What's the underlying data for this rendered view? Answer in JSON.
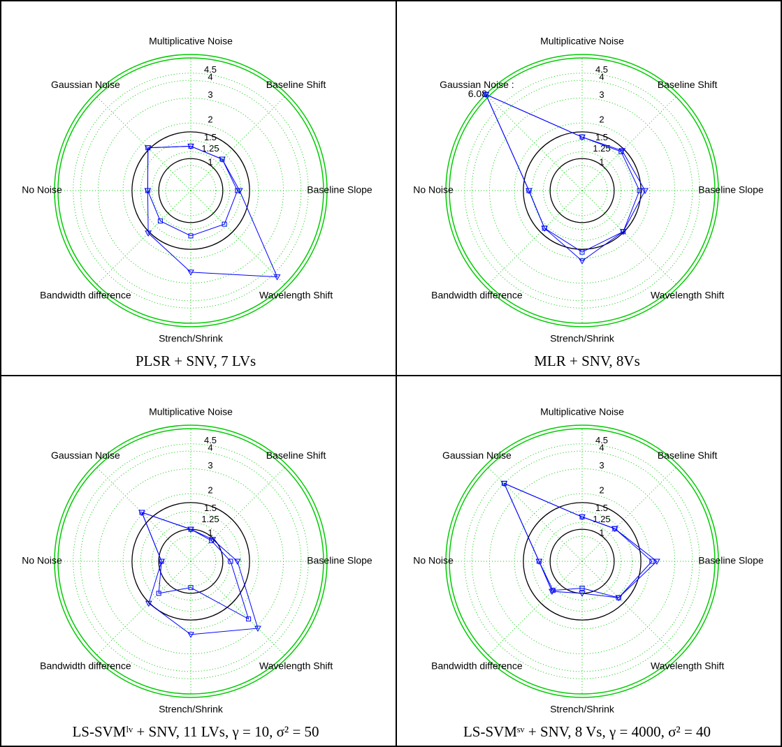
{
  "chart_data": [
    {
      "type": "radar",
      "title": "PLSR + SNV, 7 LVs",
      "categories": [
        "Multiplicative Noise",
        "Baseline Shift",
        "Baseline Slope",
        "Wavelength Shift",
        "Strench/Shrink",
        "Bandwidth difference",
        "No Noise",
        "Gaussian Noise"
      ],
      "rscale": "log",
      "rlim": [
        0.665,
        6.1
      ],
      "rticks": [
        1,
        1.25,
        1.5,
        2,
        3,
        4,
        4.5
      ],
      "reference_circles": [
        1.12,
        1.73
      ],
      "grid": true,
      "grid_color": "#00cc00",
      "outer_color": "#00cc00",
      "series": [
        {
          "marker": "triangle",
          "color": "#0000ff",
          "values": [
            1.37,
            1.37,
            1.47,
            4.85,
            2.51,
            1.77,
            1.34,
            1.78
          ]
        },
        {
          "marker": "square",
          "color": "#0000ff",
          "values": [
            1.37,
            1.37,
            1.42,
            1.44,
            1.39,
            1.34,
            1.34,
            1.78
          ]
        }
      ]
    },
    {
      "type": "radar",
      "title": "MLR + SNV, 8Vs",
      "categories": [
        "Multiplicative Noise",
        "Baseline Shift",
        "Baseline Slope",
        "Wavelength Shift",
        "Strench/Shrink",
        "Bandwidth difference",
        "No Noise",
        "Gaussian Noise :"
      ],
      "rscale": "log",
      "rlim": [
        0.665,
        6.1
      ],
      "rticks": [
        1,
        1.25,
        1.5,
        2,
        3,
        4,
        4.5
      ],
      "reference_circles": [
        1.12,
        1.73
      ],
      "grid": true,
      "grid_color": "#00cc00",
      "outer_color": "#00cc00",
      "series": [
        {
          "marker": "triangle",
          "color": "#0000ff",
          "values": [
            1.59,
            1.67,
            1.85,
            1.71,
            2.09,
            1.58,
            1.58,
            6.08
          ],
          "value_labels": [
            null,
            null,
            null,
            null,
            null,
            null,
            null,
            "6.08"
          ]
        },
        {
          "marker": "square",
          "color": "#0000ff",
          "values": [
            1.59,
            1.63,
            1.69,
            1.71,
            1.81,
            1.58,
            1.58,
            6.08
          ]
        }
      ]
    },
    {
      "type": "radar",
      "title": "LS-SVMˡᵛ + SNV, 11 LVs, γ = 10, σ² = 50",
      "categories": [
        "Multiplicative Noise",
        "Baseline Shift",
        "Baseline Slope",
        "Wavelength Shift",
        "Strench/Shrink",
        "Bandwidth difference",
        "No Noise",
        "Gaussian Noise"
      ],
      "rscale": "log",
      "rlim": [
        0.665,
        6.1
      ],
      "rticks": [
        1,
        1.25,
        1.5,
        2,
        3,
        4,
        4.5
      ],
      "reference_circles": [
        1.12,
        1.73
      ],
      "grid": true,
      "grid_color": "#00cc00",
      "outer_color": "#00cc00",
      "series": [
        {
          "marker": "triangle",
          "color": "#0000ff",
          "values": [
            1.12,
            1.1,
            1.42,
            3.11,
            2.19,
            1.75,
            1.07,
            2.05
          ]
        },
        {
          "marker": "square",
          "color": "#0000ff",
          "values": [
            1.12,
            1.07,
            1.27,
            2.51,
            1.02,
            1.39,
            1.07,
            2.05
          ]
        }
      ]
    },
    {
      "type": "radar",
      "title": "LS-SVMˢᵛ + SNV, 8 Vs, γ = 4000, σ² = 40",
      "categories": [
        "Multiplicative Noise",
        "Baseline Shift",
        "Baseline Slope",
        "Wavelength Shift",
        "Strench/Shrink",
        "Bandwidth difference",
        "No Noise",
        "Gaussian Noise"
      ],
      "rscale": "log",
      "rlim": [
        0.665,
        6.1
      ],
      "rticks": [
        1,
        1.25,
        1.5,
        2,
        3,
        4,
        4.5
      ],
      "reference_circles": [
        1.12,
        1.73
      ],
      "grid": true,
      "grid_color": "#00cc00",
      "outer_color": "#00cc00",
      "series": [
        {
          "marker": "triangle",
          "color": "#0000ff",
          "values": [
            1.37,
            1.41,
            2.24,
            1.54,
            1.12,
            1.33,
            1.34,
            4.0
          ]
        },
        {
          "marker": "square",
          "color": "#0000ff",
          "values": [
            1.37,
            1.41,
            2.07,
            1.54,
            1.03,
            1.3,
            1.34,
            4.0
          ]
        }
      ]
    }
  ]
}
